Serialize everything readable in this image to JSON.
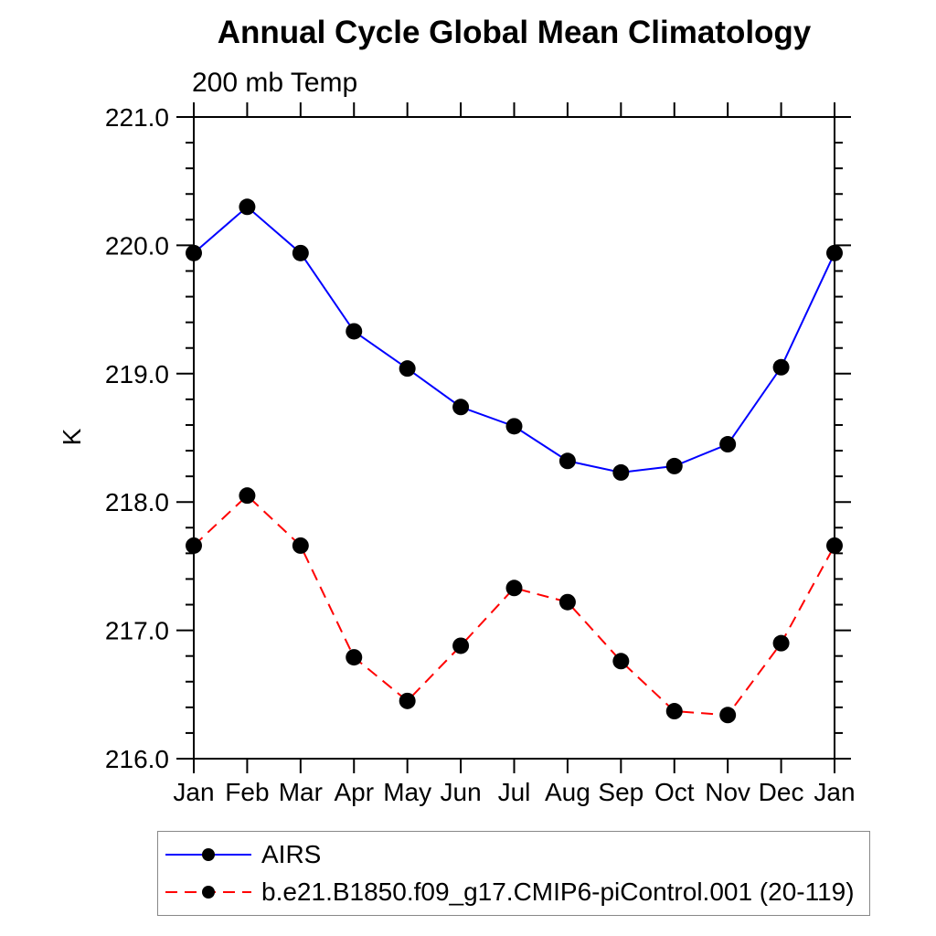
{
  "page": {
    "background_color": "#ffffff"
  },
  "chart_data": {
    "type": "line",
    "title": "Annual Cycle Global Mean Climatology",
    "subtitle": "200 mb Temp",
    "xlabel": "",
    "ylabel": "K",
    "ylim": [
      216.0,
      221.0
    ],
    "y_major_tick_interval": 1.0,
    "y_minor_tick_interval": 0.2,
    "y_tick_labels": [
      "221.0",
      "220.0",
      "219.0",
      "218.0",
      "217.0",
      "216.0"
    ],
    "categories": [
      "Jan",
      "Feb",
      "Mar",
      "Apr",
      "May",
      "Jun",
      "Jul",
      "Aug",
      "Sep",
      "Oct",
      "Nov",
      "Dec",
      "Jan"
    ],
    "grid": false,
    "axis_color": "#000000",
    "legend_position": "bottom-left",
    "series": [
      {
        "name": "AIRS",
        "color": "#0000ff",
        "line_style": "solid",
        "marker": "filled-circle",
        "marker_color": "#000000",
        "values": [
          219.94,
          220.3,
          219.94,
          219.33,
          219.04,
          218.74,
          218.59,
          218.32,
          218.23,
          218.28,
          218.45,
          219.05,
          219.94
        ]
      },
      {
        "name": "b.e21.B1850.f09_g17.CMIP6-piControl.001 (20-119)",
        "color": "#ff0000",
        "line_style": "dashed",
        "marker": "filled-circle",
        "marker_color": "#000000",
        "values": [
          217.66,
          218.05,
          217.66,
          216.79,
          216.45,
          216.88,
          217.33,
          217.22,
          216.76,
          216.37,
          216.34,
          216.9,
          217.66
        ]
      }
    ]
  },
  "legend": {
    "border_color": "#888888"
  }
}
